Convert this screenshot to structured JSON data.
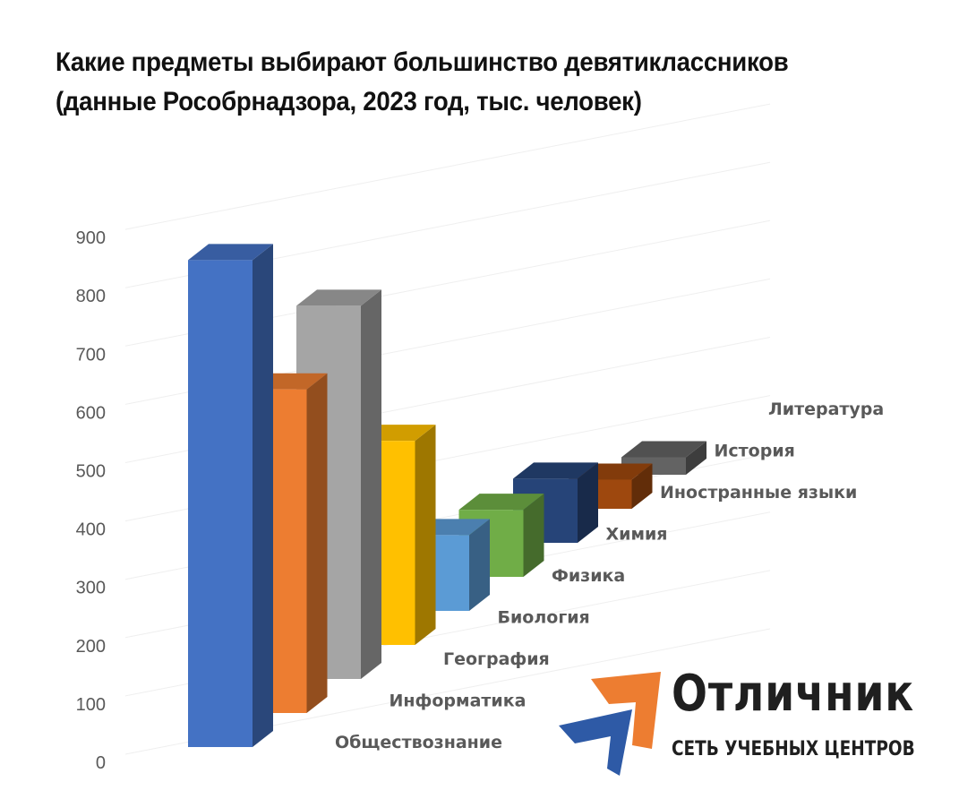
{
  "chart_data": {
    "type": "bar",
    "variant": "3d-column",
    "title": "Какие предметы выбирают большинство девятиклассников",
    "subtitle": "(данные Рособрнадзора, 2023 год, тыс. человек)",
    "categories": [
      "Обществознание",
      "Информатика",
      "География",
      "Биология",
      "Физика",
      "Химия",
      "Иностранные языки",
      "История",
      "Литература"
    ],
    "values": [
      835,
      555,
      640,
      350,
      130,
      115,
      110,
      50,
      30
    ],
    "colors": [
      "#4472C4",
      "#ED7D31",
      "#A5A5A5",
      "#FFC000",
      "#5B9BD5",
      "#70AD47",
      "#264478",
      "#9E480E",
      "#636363"
    ],
    "yticks": [
      0,
      100,
      200,
      300,
      400,
      500,
      600,
      700,
      800,
      900
    ],
    "ylim": [
      0,
      900
    ],
    "grid": true,
    "legend": "none"
  },
  "logo": {
    "name": "Отличник",
    "tagline": "СЕТЬ УЧЕБНЫХ ЦЕНТРОВ",
    "colors": {
      "orange": "#ED7D31",
      "blue": "#2E5AA6"
    }
  }
}
